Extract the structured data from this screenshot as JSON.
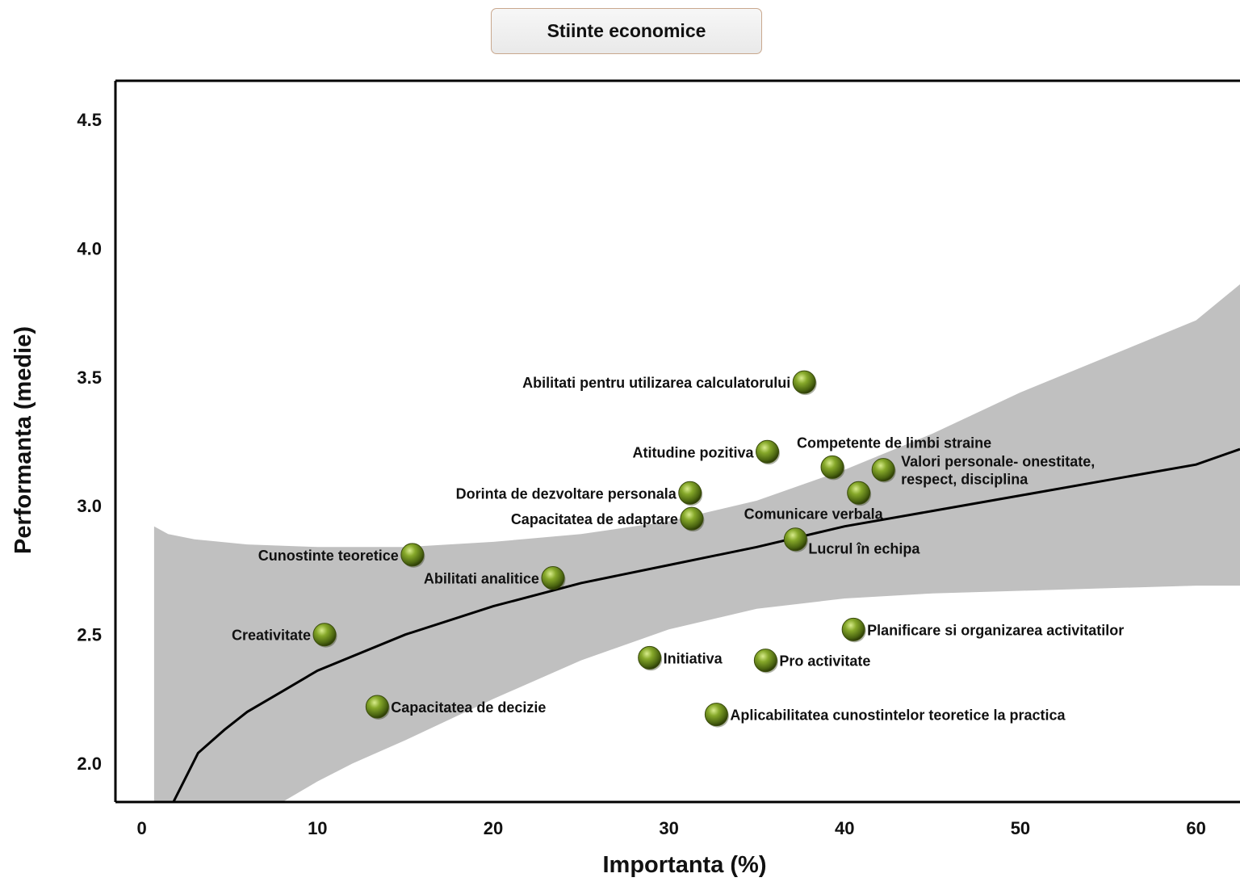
{
  "chart_data": {
    "type": "scatter",
    "title": "Stiinte economice",
    "xlabel": "Importanta (%)",
    "ylabel": "Performanta (medie)",
    "xlim": [
      -1.5,
      62.5
    ],
    "ylim": [
      1.85,
      4.65
    ],
    "xticks": [
      0,
      10,
      20,
      30,
      40,
      50,
      60
    ],
    "yticks": [
      "2.0",
      "2.5",
      "3.0",
      "3.5",
      "4.0",
      "4.5"
    ],
    "grid": false,
    "trendline": "logarithmic",
    "trend_fit": [
      [
        1.8,
        1.85
      ],
      [
        3.2,
        2.04
      ],
      [
        4.7,
        2.13
      ],
      [
        6.0,
        2.2
      ],
      [
        8.0,
        2.28
      ],
      [
        10.0,
        2.36
      ],
      [
        15.0,
        2.5
      ],
      [
        20.0,
        2.61
      ],
      [
        25.0,
        2.7
      ],
      [
        30.0,
        2.77
      ],
      [
        35.0,
        2.84
      ],
      [
        40.0,
        2.92
      ],
      [
        45.0,
        2.98
      ],
      [
        50.0,
        3.04
      ],
      [
        55.0,
        3.1
      ],
      [
        60.0,
        3.16
      ],
      [
        62.5,
        3.22
      ]
    ],
    "confidence_band": {
      "upper": [
        [
          0.7,
          2.92
        ],
        [
          1.5,
          2.89
        ],
        [
          3.0,
          2.87
        ],
        [
          6.0,
          2.85
        ],
        [
          10.0,
          2.84
        ],
        [
          15.0,
          2.84
        ],
        [
          20.0,
          2.86
        ],
        [
          25.0,
          2.89
        ],
        [
          30.0,
          2.94
        ],
        [
          35.0,
          3.02
        ],
        [
          40.0,
          3.14
        ],
        [
          45.0,
          3.28
        ],
        [
          50.0,
          3.44
        ],
        [
          55.0,
          3.58
        ],
        [
          60.0,
          3.72
        ],
        [
          62.5,
          3.86
        ]
      ],
      "lower": [
        [
          62.5,
          2.69
        ],
        [
          60.0,
          2.69
        ],
        [
          55.0,
          2.68
        ],
        [
          50.0,
          2.67
        ],
        [
          45.0,
          2.66
        ],
        [
          40.0,
          2.64
        ],
        [
          35.0,
          2.6
        ],
        [
          30.0,
          2.52
        ],
        [
          25.0,
          2.4
        ],
        [
          20.0,
          2.25
        ],
        [
          15.0,
          2.09
        ],
        [
          12.0,
          2.0
        ],
        [
          10.0,
          1.93
        ],
        [
          8.0,
          1.85
        ],
        [
          0.7,
          1.85
        ]
      ]
    },
    "points": [
      {
        "label": "Abilitati pentru utilizarea calculatorului",
        "x": 37.7,
        "y": 3.48,
        "side": "left"
      },
      {
        "label": "Atitudine pozitiva",
        "x": 35.6,
        "y": 3.21,
        "side": "left"
      },
      {
        "label": "Competente de limbi straine",
        "x": 39.3,
        "y": 3.15,
        "side": "above"
      },
      {
        "label": "Valori personale- onestitate,",
        "label2": "respect, disciplina",
        "x": 42.2,
        "y": 3.14,
        "side": "right"
      },
      {
        "label": "Dorinta de dezvoltare personala",
        "x": 31.2,
        "y": 3.05,
        "side": "left"
      },
      {
        "label": "Comunicare verbala",
        "x": 40.8,
        "y": 3.05,
        "side": "below-left"
      },
      {
        "label": "Capacitatea de adaptare",
        "x": 31.3,
        "y": 2.95,
        "side": "left"
      },
      {
        "label": "Lucrul în echipa",
        "x": 37.2,
        "y": 2.87,
        "side": "below-right"
      },
      {
        "label": "Cunostinte teoretice",
        "x": 15.4,
        "y": 2.81,
        "side": "left"
      },
      {
        "label": "Abilitati analitice",
        "x": 23.4,
        "y": 2.72,
        "side": "left"
      },
      {
        "label": "Planificare si organizarea activitatilor",
        "x": 40.5,
        "y": 2.52,
        "side": "right"
      },
      {
        "label": "Creativitate",
        "x": 10.4,
        "y": 2.5,
        "side": "left"
      },
      {
        "label": "Initiativa",
        "x": 28.9,
        "y": 2.41,
        "side": "right"
      },
      {
        "label": "Pro activitate",
        "x": 35.5,
        "y": 2.4,
        "side": "right"
      },
      {
        "label": "Capacitatea de decizie",
        "x": 13.4,
        "y": 2.22,
        "side": "right"
      },
      {
        "label": "Aplicabilitatea cunostintelor teoretice la practica",
        "x": 32.7,
        "y": 2.19,
        "side": "right"
      }
    ]
  },
  "colors": {
    "band": "#c0c0c0",
    "trend": "#000000",
    "point_light": "#c8e07a",
    "point_mid": "#6b8a1a",
    "point_dark": "#2e3d08",
    "frame": "#000000"
  }
}
